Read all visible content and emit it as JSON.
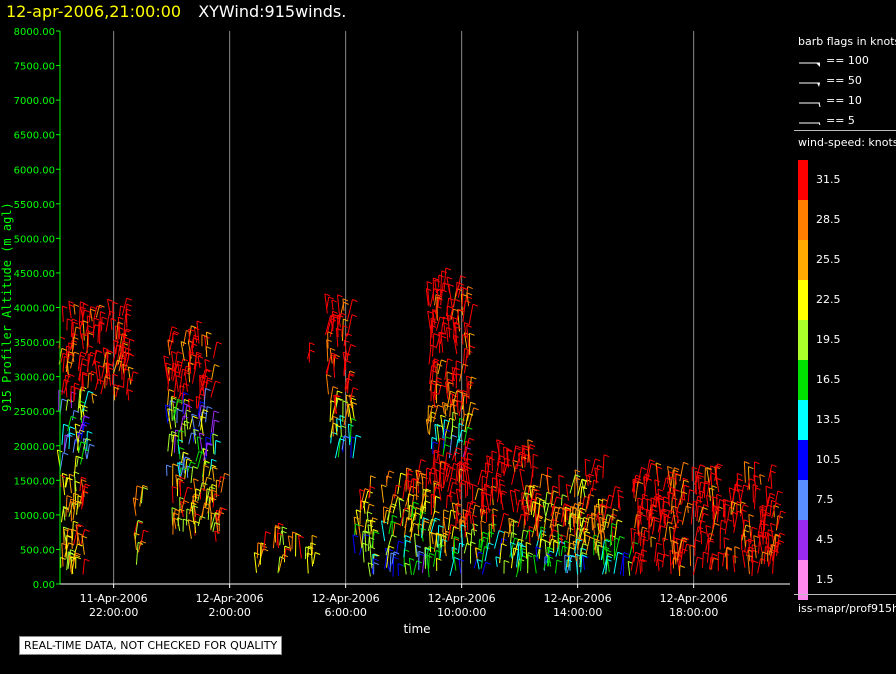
{
  "header": {
    "datetime": "12-apr-2006,21:00:00",
    "product": "XYWind:915winds."
  },
  "qc_notice": "REAL-TIME DATA, NOT CHECKED FOR QUALITY",
  "legend": {
    "barb_title": "barb flags in knots",
    "barb_entries": [
      "== 100",
      "== 50",
      "== 10",
      "== 5"
    ],
    "speed_title": "wind-speed: knots",
    "color_scale": [
      {
        "label": "31.5",
        "color": "#ff0000"
      },
      {
        "label": "28.5",
        "color": "#ff7f00"
      },
      {
        "label": "25.5",
        "color": "#ffaa00"
      },
      {
        "label": "22.5",
        "color": "#ffff00"
      },
      {
        "label": "19.5",
        "color": "#aaff2a"
      },
      {
        "label": "16.5",
        "color": "#00e000"
      },
      {
        "label": "13.5",
        "color": "#00ffff"
      },
      {
        "label": "10.5",
        "color": "#0000ff"
      },
      {
        "label": "7.5",
        "color": "#5a8fff"
      },
      {
        "label": "4.5",
        "color": "#9a2af0"
      },
      {
        "label": "1.5",
        "color": "#ff88ee"
      }
    ],
    "source": "iss-mapr/prof915h"
  },
  "chart_data": {
    "type": "scatter",
    "ylabel": "915 Profiler Altitude (m agl)",
    "xlabel": "time",
    "ylim": [
      0,
      8000
    ],
    "y_ticks": [
      "0.00",
      "500.00",
      "1000.00",
      "1500.00",
      "2000.00",
      "2500.00",
      "3000.00",
      "3500.00",
      "4000.00",
      "4500.00",
      "5000.00",
      "5500.00",
      "6000.00",
      "6500.00",
      "7000.00",
      "7500.00",
      "8000.00"
    ],
    "x_ticks": [
      {
        "date": "11-Apr-2006",
        "time": "22:00:00",
        "hour": 22
      },
      {
        "date": "12-Apr-2006",
        "time": "2:00:00",
        "hour": 26
      },
      {
        "date": "12-Apr-2006",
        "time": "6:00:00",
        "hour": 30
      },
      {
        "date": "12-Apr-2006",
        "time": "10:00:00",
        "hour": 34
      },
      {
        "date": "12-Apr-2006",
        "time": "14:00:00",
        "hour": 38
      },
      {
        "date": "12-Apr-2006",
        "time": "18:00:00",
        "hour": 42
      }
    ],
    "xlim_hours": [
      21,
      45
    ],
    "grid": "vertical",
    "wind_clusters": [
      {
        "t": [
          20.1,
          21.0
        ],
        "alt": [
          100,
          1600
        ],
        "speed": "mixed-high"
      },
      {
        "t": [
          20.1,
          21.1
        ],
        "alt": [
          1600,
          2600
        ],
        "speed": "mixed-low"
      },
      {
        "t": [
          20.1,
          22.6
        ],
        "alt": [
          2600,
          3900
        ],
        "speed": "high"
      },
      {
        "t": [
          22.7,
          23.0
        ],
        "alt": [
          250,
          1200
        ],
        "speed": "mixed-high"
      },
      {
        "t": [
          23.8,
          25.5
        ],
        "alt": [
          2500,
          3500
        ],
        "speed": "high"
      },
      {
        "t": [
          23.8,
          25.5
        ],
        "alt": [
          1500,
          2500
        ],
        "speed": "mixed-low"
      },
      {
        "t": [
          24.0,
          25.8
        ],
        "alt": [
          600,
          1500
        ],
        "speed": "mixed-high"
      },
      {
        "t": [
          26.9,
          27.9
        ],
        "alt": [
          150,
          600
        ],
        "speed": "mixed-high"
      },
      {
        "t": [
          28.1,
          28.9
        ],
        "alt": [
          150,
          500
        ],
        "speed": "mixed-high"
      },
      {
        "t": [
          28.6,
          28.8
        ],
        "alt": [
          3200,
          3500
        ],
        "speed": "high"
      },
      {
        "t": [
          29.3,
          30.1
        ],
        "alt": [
          2700,
          4000
        ],
        "speed": "high"
      },
      {
        "t": [
          29.4,
          30.3
        ],
        "alt": [
          1800,
          2700
        ],
        "speed": "mixed"
      },
      {
        "t": [
          30.3,
          31.0
        ],
        "alt": [
          100,
          1300
        ],
        "speed": "mixed"
      },
      {
        "t": [
          31.3,
          33.1
        ],
        "alt": [
          100,
          1500
        ],
        "speed": "mixed"
      },
      {
        "t": [
          32.8,
          34.3
        ],
        "alt": [
          2600,
          4300
        ],
        "speed": "high"
      },
      {
        "t": [
          32.8,
          34.3
        ],
        "alt": [
          1800,
          2600
        ],
        "speed": "mixed"
      },
      {
        "t": [
          33.0,
          36.5
        ],
        "alt": [
          1000,
          1800
        ],
        "speed": "high"
      },
      {
        "t": [
          33.0,
          38.3
        ],
        "alt": [
          100,
          1000
        ],
        "speed": "mixed"
      },
      {
        "t": [
          36.3,
          38.4
        ],
        "alt": [
          800,
          1400
        ],
        "speed": "mixed-high"
      },
      {
        "t": [
          38.2,
          38.9
        ],
        "alt": [
          1300,
          1600
        ],
        "speed": "high"
      },
      {
        "t": [
          38.5,
          39.8
        ],
        "alt": [
          100,
          1100
        ],
        "speed": "mixed"
      },
      {
        "t": [
          39.8,
          44.9
        ],
        "alt": [
          100,
          1500
        ],
        "speed": "high"
      }
    ]
  }
}
